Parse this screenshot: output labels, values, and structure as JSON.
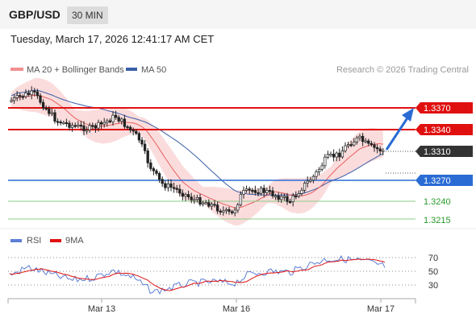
{
  "header": {
    "pair": "GBP/USD",
    "timeframe": "30 MIN"
  },
  "datetime": "Tuesday, March 17, 2026 12:41:17 AM CET",
  "legend": {
    "ma20": "MA 20 + Bollinger Bands",
    "ma50": "MA 50",
    "copyright": "Research © 2026 Trading Central",
    "rsi": "RSI",
    "rsi_ma": "9MA"
  },
  "colors": {
    "ma20": "#e86060",
    "ma50": "#3a5fa8",
    "bands": "#fbdcdc",
    "resistance": "#e01010",
    "support": "#2a6cd4",
    "green": "#2a9a2a",
    "current": "#333333",
    "up": "#ffffff",
    "down": "#222222"
  },
  "levels": [
    {
      "name": "r2",
      "label": "1.3370",
      "value": 1.337,
      "kind": "resistance"
    },
    {
      "name": "r1",
      "label": "1.3340",
      "value": 1.334,
      "kind": "resistance"
    },
    {
      "name": "current",
      "label": "1.3310",
      "value": 1.331,
      "kind": "current"
    },
    {
      "name": "pivot",
      "label": "1.3270",
      "value": 1.327,
      "kind": "pivot"
    },
    {
      "name": "s1",
      "label": "1.3240",
      "value": 1.324,
      "kind": "green"
    },
    {
      "name": "s2",
      "label": "1.3215",
      "value": 1.3215,
      "kind": "green"
    }
  ],
  "rsi_axis": {
    "levels": [
      "70",
      "50",
      "30"
    ]
  },
  "x_axis": {
    "labels": [
      "Mar 13",
      "Mar 16",
      "Mar 17"
    ]
  },
  "forecast_arrow_icon": "arrow-up-right-icon"
}
